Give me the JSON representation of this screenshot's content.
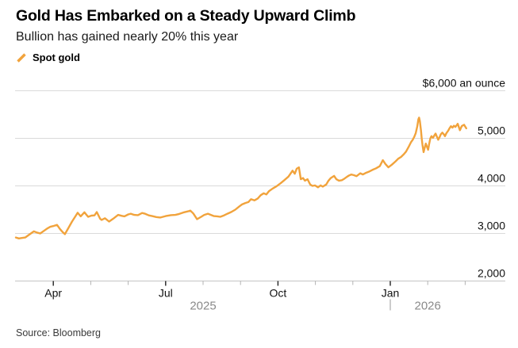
{
  "header": {
    "title": "Gold Has Embarked on a Steady Upward Climb",
    "subtitle": "Bullion has gained nearly 20% this year"
  },
  "legend": {
    "label": "Spot gold"
  },
  "source": "Source: Bloomberg",
  "colors": {
    "line": "#F1A33C",
    "grid": "#dadada",
    "baseline": "#c4c4c4",
    "major_tick": "#222222",
    "minor_tick": "#b3b3b3",
    "axis_text": "#111111",
    "year_text": "#8a8a8a",
    "divider": "#999999"
  },
  "chart_data": {
    "type": "line",
    "title": "Gold Has Embarked on a Steady Upward Climb",
    "subtitle": "Bullion has gained nearly 20% this year",
    "legend_entries": [
      "Spot gold"
    ],
    "grid": true,
    "legend_position": "top-left",
    "y_axis": {
      "lim": [
        2000,
        6000
      ],
      "ticks": [
        {
          "value": 6000,
          "label": "$6,000 an ounce"
        },
        {
          "value": 5000,
          "label": "5,000"
        },
        {
          "value": 4000,
          "label": "4,000"
        },
        {
          "value": 3000,
          "label": "3,000"
        },
        {
          "value": 2000,
          "label": "2,000"
        }
      ]
    },
    "x_axis": {
      "unit": "months since Mar 2025",
      "t_range": [
        0,
        13.2
      ],
      "major_ticks": [
        {
          "t": 1,
          "label": "Apr"
        },
        {
          "t": 4,
          "label": "Jul"
        },
        {
          "t": 7,
          "label": "Oct"
        },
        {
          "t": 10,
          "label": "Jan"
        }
      ],
      "minor_tick_t": [
        2,
        3,
        5,
        6,
        8,
        9,
        11,
        12
      ],
      "year_labels": [
        {
          "label": "2025",
          "t_center": 5
        },
        {
          "label": "2026",
          "t_center": 11
        }
      ],
      "year_divider_t": 10
    },
    "series": [
      {
        "name": "Spot gold",
        "unit": "USD an ounce",
        "points": [
          [
            0.0,
            2915
          ],
          [
            0.08,
            2895
          ],
          [
            0.16,
            2905
          ],
          [
            0.25,
            2915
          ],
          [
            0.33,
            2960
          ],
          [
            0.42,
            3010
          ],
          [
            0.48,
            3045
          ],
          [
            0.56,
            3020
          ],
          [
            0.65,
            3000
          ],
          [
            0.75,
            3055
          ],
          [
            0.85,
            3110
          ],
          [
            0.92,
            3140
          ],
          [
            1.02,
            3160
          ],
          [
            1.1,
            3180
          ],
          [
            1.18,
            3090
          ],
          [
            1.26,
            3020
          ],
          [
            1.31,
            2985
          ],
          [
            1.4,
            3110
          ],
          [
            1.5,
            3250
          ],
          [
            1.57,
            3335
          ],
          [
            1.65,
            3435
          ],
          [
            1.73,
            3360
          ],
          [
            1.83,
            3445
          ],
          [
            1.93,
            3350
          ],
          [
            2.02,
            3375
          ],
          [
            2.1,
            3380
          ],
          [
            2.16,
            3450
          ],
          [
            2.25,
            3310
          ],
          [
            2.29,
            3285
          ],
          [
            2.38,
            3320
          ],
          [
            2.49,
            3250
          ],
          [
            2.6,
            3310
          ],
          [
            2.73,
            3390
          ],
          [
            2.83,
            3370
          ],
          [
            2.9,
            3360
          ],
          [
            3.0,
            3400
          ],
          [
            3.07,
            3415
          ],
          [
            3.16,
            3390
          ],
          [
            3.26,
            3385
          ],
          [
            3.37,
            3430
          ],
          [
            3.45,
            3415
          ],
          [
            3.55,
            3380
          ],
          [
            3.64,
            3365
          ],
          [
            3.75,
            3345
          ],
          [
            3.86,
            3335
          ],
          [
            4.0,
            3365
          ],
          [
            4.14,
            3385
          ],
          [
            4.26,
            3390
          ],
          [
            4.36,
            3410
          ],
          [
            4.47,
            3440
          ],
          [
            4.6,
            3465
          ],
          [
            4.66,
            3480
          ],
          [
            4.74,
            3420
          ],
          [
            4.84,
            3300
          ],
          [
            4.95,
            3350
          ],
          [
            5.03,
            3390
          ],
          [
            5.13,
            3415
          ],
          [
            5.21,
            3390
          ],
          [
            5.29,
            3365
          ],
          [
            5.38,
            3360
          ],
          [
            5.46,
            3350
          ],
          [
            5.56,
            3380
          ],
          [
            5.65,
            3415
          ],
          [
            5.75,
            3450
          ],
          [
            5.86,
            3500
          ],
          [
            5.97,
            3570
          ],
          [
            6.04,
            3610
          ],
          [
            6.13,
            3640
          ],
          [
            6.21,
            3660
          ],
          [
            6.28,
            3720
          ],
          [
            6.37,
            3695
          ],
          [
            6.46,
            3735
          ],
          [
            6.54,
            3805
          ],
          [
            6.62,
            3845
          ],
          [
            6.69,
            3820
          ],
          [
            6.76,
            3890
          ],
          [
            6.86,
            3945
          ],
          [
            6.96,
            3990
          ],
          [
            7.07,
            4055
          ],
          [
            7.17,
            4120
          ],
          [
            7.28,
            4195
          ],
          [
            7.39,
            4320
          ],
          [
            7.45,
            4255
          ],
          [
            7.5,
            4360
          ],
          [
            7.56,
            4390
          ],
          [
            7.61,
            4140
          ],
          [
            7.67,
            4165
          ],
          [
            7.72,
            4110
          ],
          [
            7.79,
            4140
          ],
          [
            7.86,
            4030
          ],
          [
            7.92,
            4000
          ],
          [
            7.99,
            4010
          ],
          [
            8.07,
            3970
          ],
          [
            8.14,
            4010
          ],
          [
            8.2,
            3985
          ],
          [
            8.29,
            4030
          ],
          [
            8.35,
            4110
          ],
          [
            8.41,
            4165
          ],
          [
            8.5,
            4210
          ],
          [
            8.56,
            4140
          ],
          [
            8.63,
            4110
          ],
          [
            8.71,
            4120
          ],
          [
            8.78,
            4155
          ],
          [
            8.85,
            4195
          ],
          [
            8.9,
            4220
          ],
          [
            8.96,
            4240
          ],
          [
            9.03,
            4225
          ],
          [
            9.1,
            4205
          ],
          [
            9.2,
            4265
          ],
          [
            9.27,
            4240
          ],
          [
            9.34,
            4270
          ],
          [
            9.42,
            4295
          ],
          [
            9.52,
            4335
          ],
          [
            9.62,
            4370
          ],
          [
            9.72,
            4415
          ],
          [
            9.8,
            4540
          ],
          [
            9.87,
            4460
          ],
          [
            9.95,
            4390
          ],
          [
            10.04,
            4445
          ],
          [
            10.14,
            4515
          ],
          [
            10.21,
            4570
          ],
          [
            10.29,
            4610
          ],
          [
            10.36,
            4665
          ],
          [
            10.42,
            4720
          ],
          [
            10.5,
            4835
          ],
          [
            10.55,
            4915
          ],
          [
            10.6,
            4970
          ],
          [
            10.64,
            5030
          ],
          [
            10.68,
            5110
          ],
          [
            10.72,
            5250
          ],
          [
            10.75,
            5400
          ],
          [
            10.77,
            5435
          ],
          [
            10.79,
            5360
          ],
          [
            10.82,
            5165
          ],
          [
            10.84,
            5000
          ],
          [
            10.86,
            4860
          ],
          [
            10.89,
            4710
          ],
          [
            10.92,
            4805
          ],
          [
            10.95,
            4890
          ],
          [
            10.98,
            4820
          ],
          [
            11.01,
            4760
          ],
          [
            11.04,
            4890
          ],
          [
            11.07,
            5000
          ],
          [
            11.1,
            5045
          ],
          [
            11.14,
            5010
          ],
          [
            11.18,
            5065
          ],
          [
            11.21,
            5100
          ],
          [
            11.24,
            5045
          ],
          [
            11.28,
            4970
          ],
          [
            11.32,
            5030
          ],
          [
            11.35,
            5085
          ],
          [
            11.39,
            5120
          ],
          [
            11.43,
            5085
          ],
          [
            11.46,
            5045
          ],
          [
            11.5,
            5110
          ],
          [
            11.55,
            5165
          ],
          [
            11.58,
            5210
          ],
          [
            11.62,
            5255
          ],
          [
            11.66,
            5225
          ],
          [
            11.7,
            5265
          ],
          [
            11.74,
            5240
          ],
          [
            11.8,
            5305
          ],
          [
            11.86,
            5170
          ],
          [
            11.91,
            5260
          ],
          [
            11.97,
            5285
          ],
          [
            12.03,
            5210
          ]
        ]
      }
    ],
    "source": "Source: Bloomberg"
  }
}
